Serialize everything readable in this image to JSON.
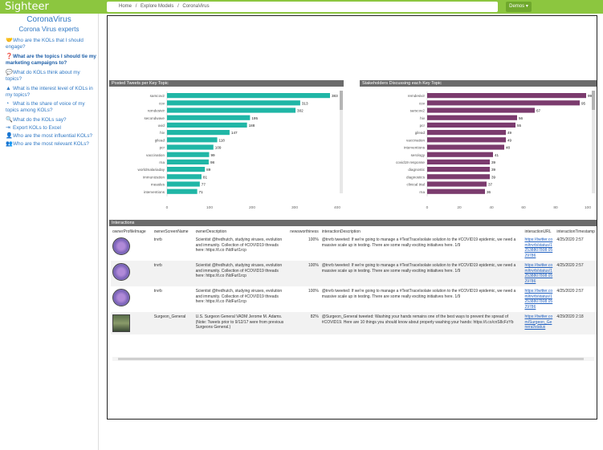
{
  "app": {
    "brand": "Sighteer"
  },
  "breadcrumb": {
    "home": "Home",
    "sep": "/",
    "models": "Explore Models",
    "current": "CoronaVirus"
  },
  "demo_label": "Demos",
  "sidebar": {
    "title": "CoronaVirus",
    "subtitle": "Corona Virus experts",
    "items": [
      {
        "label": "Who are the KOLs that I should engage?",
        "icon": "handshake-icon"
      },
      {
        "label": "What are the topics I should tie my marketing campaigns to?",
        "icon": "question-circle-icon"
      },
      {
        "label": "What do KOLs think about my topics?",
        "icon": "speech-bubble-icon"
      },
      {
        "label": "What is the interest level of KOLs in my topics?",
        "icon": "area-chart-icon"
      },
      {
        "label": "What is the share of voice of my topics among KOLs?",
        "icon": "pie-chart-icon"
      },
      {
        "label": "What do the KOLs say?",
        "icon": "magnifier-icon"
      },
      {
        "label": "Export KOLs to Excel",
        "icon": "export-icon"
      },
      {
        "label": "Who are the most influential KOLs?",
        "icon": "person-icon"
      },
      {
        "label": "Who are the most relevant KOLs?",
        "icon": "people-icon"
      }
    ]
  },
  "charts": {
    "tweets": {
      "title": "Posted Tweets per Key Topic"
    },
    "stakeholders": {
      "title": "Stakeholders Discussing each Key Topic"
    }
  },
  "chart_data": [
    {
      "type": "bar",
      "title": "Posted Tweets per Key Topic",
      "orientation": "horizontal",
      "categories": [
        "sarscov2",
        "cov",
        "remdesivir",
        "secondwave",
        "uvid",
        "hiv",
        "gilead",
        "pcr",
        "vaccination",
        "rna",
        "worldmalariaday",
        "immunization",
        "measles",
        "interventions"
      ],
      "values": [
        383,
        313,
        302,
        195,
        188,
        147,
        118,
        109,
        99,
        98,
        89,
        81,
        77,
        71
      ],
      "xlim": [
        0,
        400
      ],
      "xticks": [
        0,
        100,
        200,
        300,
        400
      ],
      "color": "#20b6a6"
    },
    {
      "type": "bar",
      "title": "Stakeholders Discussing each Key Topic",
      "orientation": "horizontal",
      "categories": [
        "remdesivir",
        "cov",
        "sarscov2",
        "hiv",
        "pcr",
        "gilead",
        "vaccination",
        "interventions",
        "serology",
        "covid19 response",
        "diagnostic",
        "diagnostics",
        "clinical trial",
        "rna"
      ],
      "values": [
        99,
        95,
        67,
        56,
        55,
        49,
        49,
        48,
        41,
        39,
        39,
        39,
        37,
        36
      ],
      "xlim": [
        0,
        100
      ],
      "xticks": [
        0,
        20,
        40,
        60,
        80,
        100
      ],
      "color": "#7b3b6e"
    }
  ],
  "interactions": {
    "title": "Interactions",
    "columns": [
      "ownerProfileImage",
      "ownerScreenName",
      "ownerDescription",
      "newsworthiness",
      "interactionDescription",
      "interactionURL",
      "interactionTimestamp"
    ],
    "rows": [
      {
        "avatar": "illustration",
        "screen": "trvrb",
        "desc": "Scientist @fredhutch, studying viruses, evolution and immunity. Collection of #COVID19 threads here: https://t.co /NdFurl1rcp",
        "news": "100%",
        "text": "@trvrb tweeted: If we're going to manage a #TestTraceIsolate solution to the #COVID19 epidemic, we need a massive scale up in testing. There are some really exciting initiatives here. 1/9",
        "url": "https://twitter.com/trvrb/status/12538807808 0529786",
        "ts": "4/25/2020 2:57"
      },
      {
        "avatar": "illustration",
        "screen": "trvrb",
        "desc": "Scientist @fredhutch, studying viruses, evolution and immunity. Collection of #COVID19 threads here: https://t.co /NdFurl1rcp",
        "news": "100%",
        "text": "@trvrb tweeted: If we're going to manage a #TestTraceIsolate solution to the #COVID19 epidemic, we need a massive scale up in testing. There are some really exciting initiatives here. 1/9",
        "url": "https://twitter.com/trvrb/status/12538807808 0529786",
        "ts": "4/25/2020 2:57"
      },
      {
        "avatar": "illustration",
        "screen": "trvrb",
        "desc": "Scientist @fredhutch, studying viruses, evolution and immunity. Collection of #COVID19 threads here: https://t.co /NdFurl1rcp",
        "news": "100%",
        "text": "@trvrb tweeted: If we're going to manage a #TestTraceIsolate solution to the #COVID19 epidemic, we need a massive scale up in testing. There are some really exciting initiatives here. 1/9",
        "url": "https://twitter.com/trvrb/status/12538807808 0529786",
        "ts": "4/25/2020 2:57"
      },
      {
        "avatar": "photo",
        "screen": "Surgeon_General",
        "desc": "U.S. Surgeon General VADM Jerome M. Adams. (Note: Tweets prior to 9/12/17 were from previous Surgeons General.)",
        "news": "82%",
        "text": "@Surgeon_General tweeted: Washing your hands remains one of the best ways to prevent the spread of #COVID19. Here are 10 things you should know about properly washing your hands: https://t.co/cnS8cFzYb",
        "url": "https://twitter.com/Surgeon_General/status",
        "ts": "4/29/2020 2:18"
      }
    ]
  }
}
